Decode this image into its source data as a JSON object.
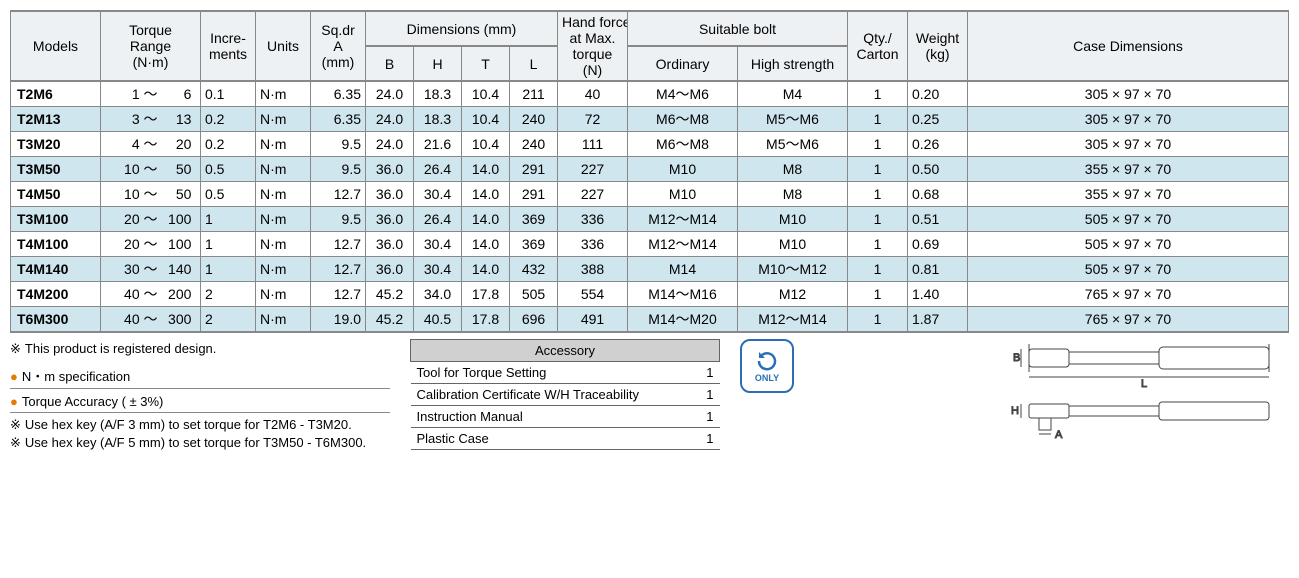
{
  "headers": {
    "models": "Models",
    "torque_range": "Torque\nRange\n(N·m)",
    "increments": "Incre-\nments",
    "units": "Units",
    "sqdr": "Sq.dr\nA\n(mm)",
    "dimensions": "Dimensions (mm)",
    "dim_b": "B",
    "dim_h": "H",
    "dim_t": "T",
    "dim_l": "L",
    "hand_force": "Hand force\nat Max.\ntorque\n(N)",
    "suitable_bolt": "Suitable bolt",
    "ordinary": "Ordinary",
    "high_strength": "High strength",
    "qty_carton": "Qty./\nCarton",
    "weight": "Weight\n(kg)",
    "case_dim": "Case Dimensions"
  },
  "rows": [
    {
      "model": "T2M6",
      "range_lo": "1",
      "range_hi": "6",
      "inc": "0.1",
      "units": "N·m",
      "sqdr": "6.35",
      "b": "24.0",
      "h": "18.3",
      "t": "10.4",
      "l": "211",
      "hf": "40",
      "ord": "M4～M6",
      "hs": "M4",
      "qty": "1",
      "wt": "0.20",
      "case": "305 × 97 × 70"
    },
    {
      "model": "T2M13",
      "range_lo": "3",
      "range_hi": "13",
      "inc": "0.2",
      "units": "N·m",
      "sqdr": "6.35",
      "b": "24.0",
      "h": "18.3",
      "t": "10.4",
      "l": "240",
      "hf": "72",
      "ord": "M6～M8",
      "hs": "M5～M6",
      "qty": "1",
      "wt": "0.25",
      "case": "305 × 97 × 70"
    },
    {
      "model": "T3M20",
      "range_lo": "4",
      "range_hi": "20",
      "inc": "0.2",
      "units": "N·m",
      "sqdr": "9.5",
      "b": "24.0",
      "h": "21.6",
      "t": "10.4",
      "l": "240",
      "hf": "111",
      "ord": "M6～M8",
      "hs": "M5～M6",
      "qty": "1",
      "wt": "0.26",
      "case": "305 × 97 × 70"
    },
    {
      "model": "T3M50",
      "range_lo": "10",
      "range_hi": "50",
      "inc": "0.5",
      "units": "N·m",
      "sqdr": "9.5",
      "b": "36.0",
      "h": "26.4",
      "t": "14.0",
      "l": "291",
      "hf": "227",
      "ord": "M10",
      "hs": "M8",
      "qty": "1",
      "wt": "0.50",
      "case": "355 × 97 × 70"
    },
    {
      "model": "T4M50",
      "range_lo": "10",
      "range_hi": "50",
      "inc": "0.5",
      "units": "N·m",
      "sqdr": "12.7",
      "b": "36.0",
      "h": "30.4",
      "t": "14.0",
      "l": "291",
      "hf": "227",
      "ord": "M10",
      "hs": "M8",
      "qty": "1",
      "wt": "0.68",
      "case": "355 × 97 × 70"
    },
    {
      "model": "T3M100",
      "range_lo": "20",
      "range_hi": "100",
      "inc": "1",
      "units": "N·m",
      "sqdr": "9.5",
      "b": "36.0",
      "h": "26.4",
      "t": "14.0",
      "l": "369",
      "hf": "336",
      "ord": "M12～M14",
      "hs": "M10",
      "qty": "1",
      "wt": "0.51",
      "case": "505 × 97 × 70"
    },
    {
      "model": "T4M100",
      "range_lo": "20",
      "range_hi": "100",
      "inc": "1",
      "units": "N·m",
      "sqdr": "12.7",
      "b": "36.0",
      "h": "30.4",
      "t": "14.0",
      "l": "369",
      "hf": "336",
      "ord": "M12～M14",
      "hs": "M10",
      "qty": "1",
      "wt": "0.69",
      "case": "505 × 97 × 70"
    },
    {
      "model": "T4M140",
      "range_lo": "30",
      "range_hi": "140",
      "inc": "1",
      "units": "N·m",
      "sqdr": "12.7",
      "b": "36.0",
      "h": "30.4",
      "t": "14.0",
      "l": "432",
      "hf": "388",
      "ord": "M14",
      "hs": "M10～M12",
      "qty": "1",
      "wt": "0.81",
      "case": "505 × 97 × 70"
    },
    {
      "model": "T4M200",
      "range_lo": "40",
      "range_hi": "200",
      "inc": "2",
      "units": "N·m",
      "sqdr": "12.7",
      "b": "45.2",
      "h": "34.0",
      "t": "17.8",
      "l": "505",
      "hf": "554",
      "ord": "M14～M16",
      "hs": "M12",
      "qty": "1",
      "wt": "1.40",
      "case": "765 × 97 × 70"
    },
    {
      "model": "T6M300",
      "range_lo": "40",
      "range_hi": "300",
      "inc": "2",
      "units": "N·m",
      "sqdr": "19.0",
      "b": "45.2",
      "h": "40.5",
      "t": "17.8",
      "l": "696",
      "hf": "491",
      "ord": "M14～M20",
      "hs": "M12～M14",
      "qty": "1",
      "wt": "1.87",
      "case": "765 × 97 × 70"
    }
  ],
  "notes": {
    "registered": "This product is registered design.",
    "spec": "N・m specification",
    "accuracy": "Torque Accuracy ( ± 3%)",
    "hex3": "Use hex key (A/F 3 mm) to set torque for T2M6 - T3M20.",
    "hex5": "Use hex key (A/F 5 mm) to set torque for T3M50 - T6M300."
  },
  "accessory": {
    "title": "Accessory",
    "items": [
      {
        "name": "Tool for Torque Setting",
        "qty": "1"
      },
      {
        "name": "Calibration Certificate W/H Traceability",
        "qty": "1"
      },
      {
        "name": "Instruction Manual",
        "qty": "1"
      },
      {
        "name": "Plastic Case",
        "qty": "1"
      }
    ]
  },
  "only_label": "ONLY",
  "diagram_labels": {
    "B": "B",
    "L": "L",
    "H": "H",
    "A": "A"
  },
  "colors": {
    "header_bg": "#eef1f3",
    "alt_row_bg": "#cfe6ee",
    "border": "#888888",
    "bullet": "#e67a00",
    "only": "#2a6fb5",
    "acc_header": "#d0d0d0"
  }
}
